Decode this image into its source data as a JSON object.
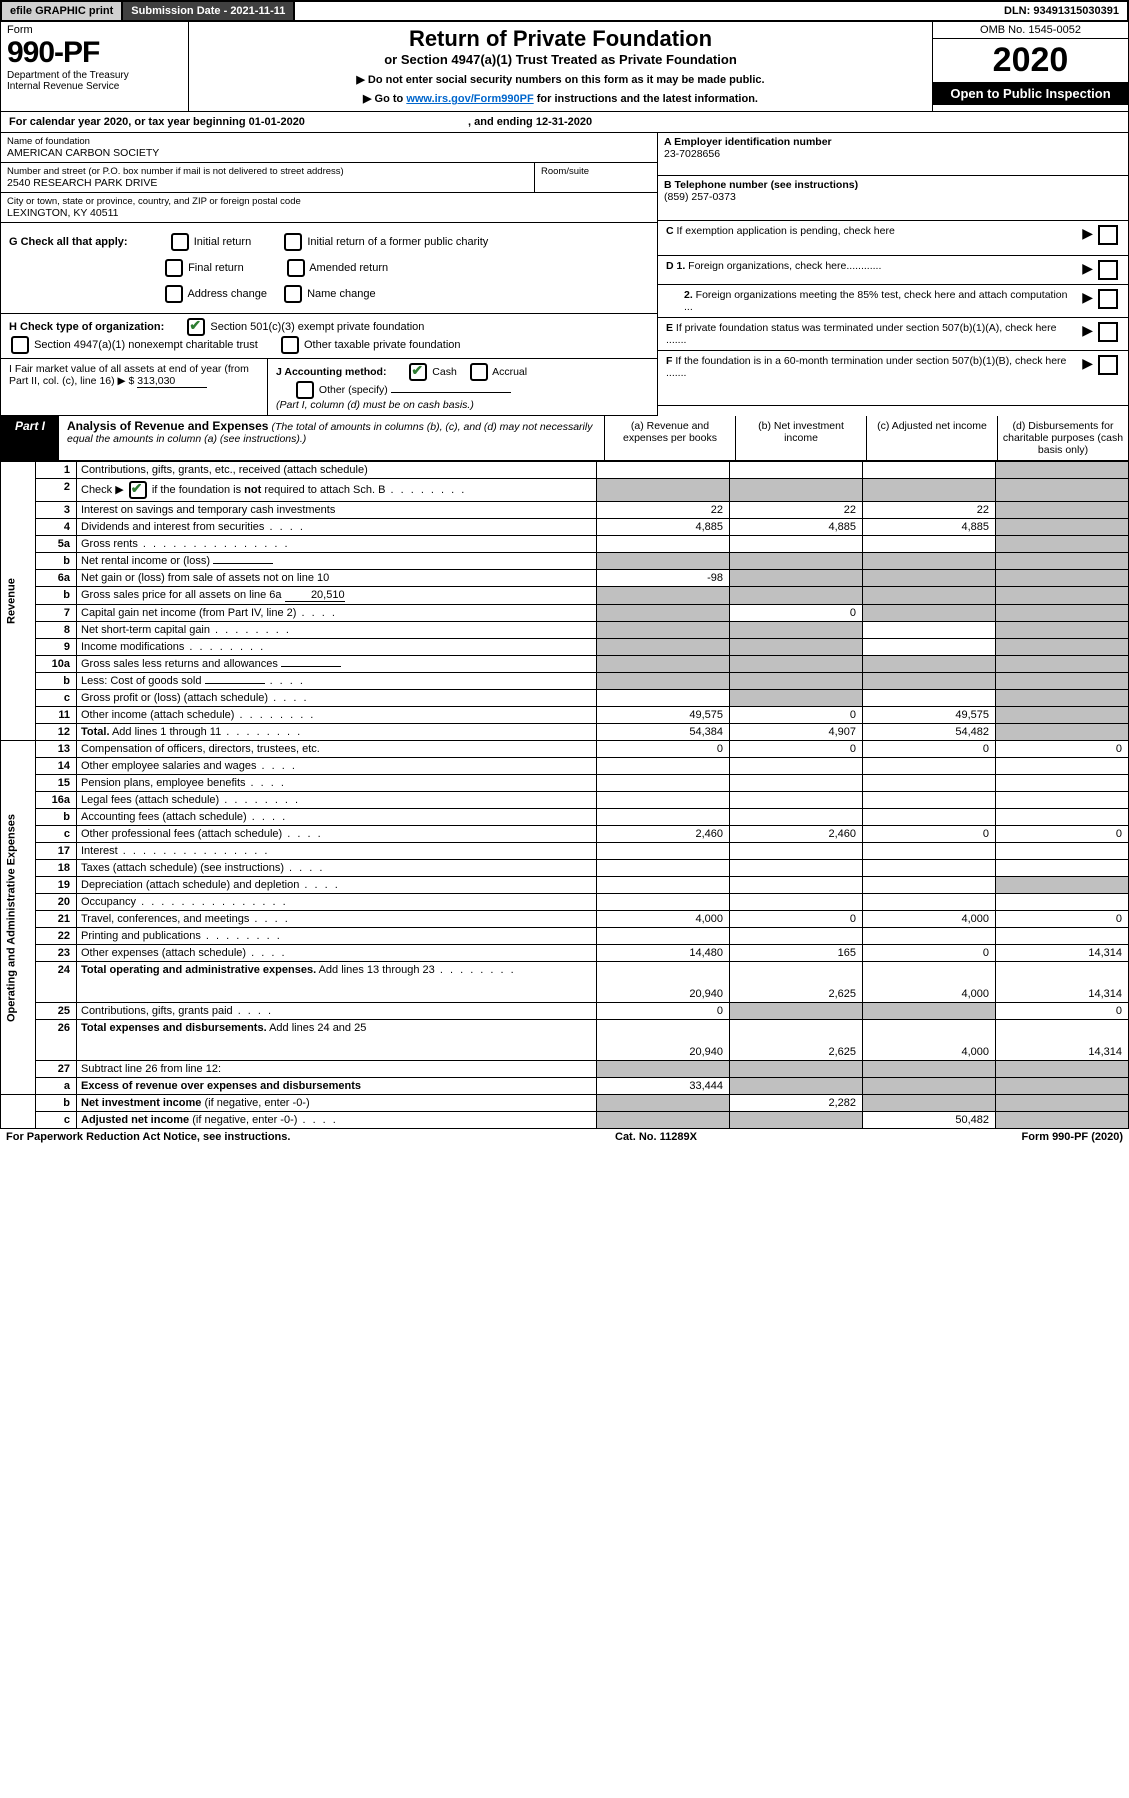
{
  "topbar": {
    "efile": "efile GRAPHIC print",
    "submission": "Submission Date - 2021-11-11",
    "dln": "DLN: 93491315030391"
  },
  "header": {
    "form_label": "Form",
    "form_number": "990-PF",
    "dept1": "Department of the Treasury",
    "dept2": "Internal Revenue Service",
    "title": "Return of Private Foundation",
    "subtitle": "or Section 4947(a)(1) Trust Treated as Private Foundation",
    "instr1": "▶ Do not enter social security numbers on this form as it may be made public.",
    "instr2_pre": "▶ Go to ",
    "instr2_link": "www.irs.gov/Form990PF",
    "instr2_post": " for instructions and the latest information.",
    "omb": "OMB No. 1545-0052",
    "year": "2020",
    "open": "Open to Public Inspection"
  },
  "calyear": {
    "text_pre": "For calendar year 2020, or tax year beginning ",
    "begin": "01-01-2020",
    "text_mid": " , and ending ",
    "end": "12-31-2020"
  },
  "info": {
    "name_label": "Name of foundation",
    "name": "AMERICAN CARBON SOCIETY",
    "addr_label": "Number and street (or P.O. box number if mail is not delivered to street address)",
    "addr": "2540 RESEARCH PARK DRIVE",
    "room_label": "Room/suite",
    "city_label": "City or town, state or province, country, and ZIP or foreign postal code",
    "city": "LEXINGTON, KY  40511",
    "a_label": "A Employer identification number",
    "a_val": "23-7028656",
    "b_label": "B Telephone number (see instructions)",
    "b_val": "(859) 257-0373",
    "c_label": "C If exemption application is pending, check here",
    "d1_label": "D 1. Foreign organizations, check here............",
    "d2_label": "2. Foreign organizations meeting the 85% test, check here and attach computation ...",
    "e_label": "E If private foundation status was terminated under section 507(b)(1)(A), check here .......",
    "f_label": "F If the foundation is in a 60-month termination under section 507(b)(1)(B), check here .......",
    "g_label": "G Check all that apply:",
    "g1": "Initial return",
    "g2": "Initial return of a former public charity",
    "g3": "Final return",
    "g4": "Amended return",
    "g5": "Address change",
    "g6": "Name change",
    "h_label": "H Check type of organization:",
    "h1": "Section 501(c)(3) exempt private foundation",
    "h2": "Section 4947(a)(1) nonexempt charitable trust",
    "h3": "Other taxable private foundation",
    "i_label": "I Fair market value of all assets at end of year (from Part II, col. (c), line 16) ▶ $",
    "i_val": "313,030",
    "j_label": "J Accounting method:",
    "j1": "Cash",
    "j2": "Accrual",
    "j3": "Other (specify)",
    "j_note": "(Part I, column (d) must be on cash basis.)"
  },
  "part1": {
    "label": "Part I",
    "title": "Analysis of Revenue and Expenses",
    "note": "(The total of amounts in columns (b), (c), and (d) may not necessarily equal the amounts in column (a) (see instructions).)",
    "cols": {
      "a": "(a) Revenue and expenses per books",
      "b": "(b) Net investment income",
      "c": "(c) Adjusted net income",
      "d": "(d) Disbursements for charitable purposes (cash basis only)"
    }
  },
  "side_labels": {
    "revenue": "Revenue",
    "expenses": "Operating and Administrative Expenses"
  },
  "rows": [
    {
      "n": "1",
      "desc": "Contributions, gifts, grants, etc., received (attach schedule)",
      "a": "",
      "b": "",
      "c": "",
      "d": "shade"
    },
    {
      "n": "2",
      "desc": "Check ▶ [✔] if the foundation is <b>not</b> required to attach Sch. B",
      "dots": "short",
      "a": "shade",
      "b": "shade",
      "c": "shade",
      "d": "shade",
      "html": true
    },
    {
      "n": "3",
      "desc": "Interest on savings and temporary cash investments",
      "a": "22",
      "b": "22",
      "c": "22",
      "d": "shade"
    },
    {
      "n": "4",
      "desc": "Dividends and interest from securities",
      "dots": "vshort",
      "a": "4,885",
      "b": "4,885",
      "c": "4,885",
      "d": "shade"
    },
    {
      "n": "5a",
      "desc": "Gross rents",
      "dots": "long",
      "a": "",
      "b": "",
      "c": "",
      "d": "shade"
    },
    {
      "n": "b",
      "desc": "Net rental income or (loss)",
      "inline": "",
      "a": "shade",
      "b": "shade",
      "c": "shade",
      "d": "shade"
    },
    {
      "n": "6a",
      "desc": "Net gain or (loss) from sale of assets not on line 10",
      "a": "-98",
      "b": "shade",
      "c": "shade",
      "d": "shade"
    },
    {
      "n": "b",
      "desc": "Gross sales price for all assets on line 6a",
      "inline": "20,510",
      "a": "shade",
      "b": "shade",
      "c": "shade",
      "d": "shade"
    },
    {
      "n": "7",
      "desc": "Capital gain net income (from Part IV, line 2)",
      "dots": "vshort",
      "a": "shade",
      "b": "0",
      "c": "shade",
      "d": "shade"
    },
    {
      "n": "8",
      "desc": "Net short-term capital gain",
      "dots": "short",
      "a": "shade",
      "b": "shade",
      "c": "",
      "d": "shade"
    },
    {
      "n": "9",
      "desc": "Income modifications",
      "dots": "short",
      "a": "shade",
      "b": "shade",
      "c": "",
      "d": "shade"
    },
    {
      "n": "10a",
      "desc": "Gross sales less returns and allowances",
      "inline": "",
      "a": "shade",
      "b": "shade",
      "c": "shade",
      "d": "shade"
    },
    {
      "n": "b",
      "desc": "Less: Cost of goods sold",
      "dots": "vshort",
      "inline": "",
      "a": "shade",
      "b": "shade",
      "c": "shade",
      "d": "shade"
    },
    {
      "n": "c",
      "desc": "Gross profit or (loss) (attach schedule)",
      "dots": "vshort",
      "a": "",
      "b": "shade",
      "c": "",
      "d": "shade"
    },
    {
      "n": "11",
      "desc": "Other income (attach schedule)",
      "dots": "short",
      "a": "49,575",
      "b": "0",
      "c": "49,575",
      "d": "shade"
    },
    {
      "n": "12",
      "desc": "<b>Total.</b> Add lines 1 through 11",
      "dots": "short",
      "a": "54,384",
      "b": "4,907",
      "c": "54,482",
      "d": "shade",
      "html": true
    },
    {
      "n": "13",
      "desc": "Compensation of officers, directors, trustees, etc.",
      "a": "0",
      "b": "0",
      "c": "0",
      "d": "0"
    },
    {
      "n": "14",
      "desc": "Other employee salaries and wages",
      "dots": "vshort",
      "a": "",
      "b": "",
      "c": "",
      "d": ""
    },
    {
      "n": "15",
      "desc": "Pension plans, employee benefits",
      "dots": "vshort",
      "a": "",
      "b": "",
      "c": "",
      "d": ""
    },
    {
      "n": "16a",
      "desc": "Legal fees (attach schedule)",
      "dots": "short",
      "a": "",
      "b": "",
      "c": "",
      "d": ""
    },
    {
      "n": "b",
      "desc": "Accounting fees (attach schedule)",
      "dots": "vshort",
      "a": "",
      "b": "",
      "c": "",
      "d": ""
    },
    {
      "n": "c",
      "desc": "Other professional fees (attach schedule)",
      "dots": "vshort",
      "a": "2,460",
      "b": "2,460",
      "c": "0",
      "d": "0"
    },
    {
      "n": "17",
      "desc": "Interest",
      "dots": "long",
      "a": "",
      "b": "",
      "c": "",
      "d": ""
    },
    {
      "n": "18",
      "desc": "Taxes (attach schedule) (see instructions)",
      "dots": "vshort",
      "a": "",
      "b": "",
      "c": "",
      "d": ""
    },
    {
      "n": "19",
      "desc": "Depreciation (attach schedule) and depletion",
      "dots": "vshort",
      "a": "",
      "b": "",
      "c": "",
      "d": "shade"
    },
    {
      "n": "20",
      "desc": "Occupancy",
      "dots": "long",
      "a": "",
      "b": "",
      "c": "",
      "d": ""
    },
    {
      "n": "21",
      "desc": "Travel, conferences, and meetings",
      "dots": "vshort",
      "a": "4,000",
      "b": "0",
      "c": "4,000",
      "d": "0"
    },
    {
      "n": "22",
      "desc": "Printing and publications",
      "dots": "short",
      "a": "",
      "b": "",
      "c": "",
      "d": ""
    },
    {
      "n": "23",
      "desc": "Other expenses (attach schedule)",
      "dots": "vshort",
      "a": "14,480",
      "b": "165",
      "c": "0",
      "d": "14,314"
    },
    {
      "n": "24",
      "desc": "<b>Total operating and administrative expenses.</b> Add lines 13 through 23",
      "dots": "short",
      "a": "20,940",
      "b": "2,625",
      "c": "4,000",
      "d": "14,314",
      "html": true,
      "tall": true
    },
    {
      "n": "25",
      "desc": "Contributions, gifts, grants paid",
      "dots": "vshort",
      "a": "0",
      "b": "shade",
      "c": "shade",
      "d": "0"
    },
    {
      "n": "26",
      "desc": "<b>Total expenses and disbursements.</b> Add lines 24 and 25",
      "a": "20,940",
      "b": "2,625",
      "c": "4,000",
      "d": "14,314",
      "html": true,
      "tall": true
    },
    {
      "n": "27",
      "desc": "Subtract line 26 from line 12:",
      "a": "shade",
      "b": "shade",
      "c": "shade",
      "d": "shade"
    },
    {
      "n": "a",
      "desc": "<b>Excess of revenue over expenses and disbursements</b>",
      "a": "33,444",
      "b": "shade",
      "c": "shade",
      "d": "shade",
      "html": true
    },
    {
      "n": "b",
      "desc": "<b>Net investment income</b> (if negative, enter -0-)",
      "a": "shade",
      "b": "2,282",
      "c": "shade",
      "d": "shade",
      "html": true
    },
    {
      "n": "c",
      "desc": "<b>Adjusted net income</b> (if negative, enter -0-)",
      "dots": "vshort",
      "a": "shade",
      "b": "shade",
      "c": "50,482",
      "d": "shade",
      "html": true
    }
  ],
  "footer": {
    "left": "For Paperwork Reduction Act Notice, see instructions.",
    "mid": "Cat. No. 11289X",
    "right": "Form 990-PF (2020)"
  }
}
